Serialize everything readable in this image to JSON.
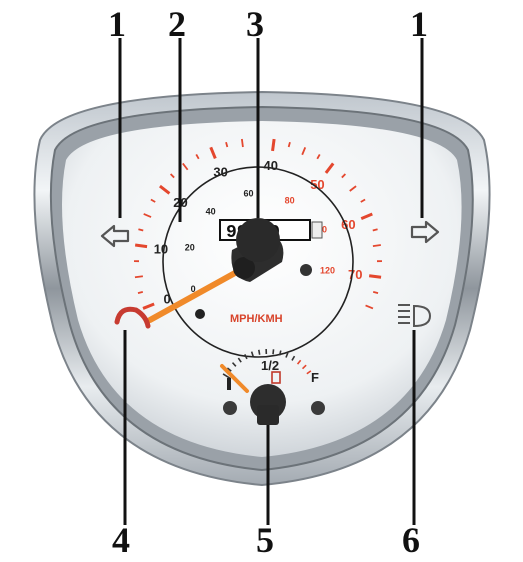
{
  "callouts": [
    {
      "id": "left-turn",
      "label": "1"
    },
    {
      "id": "speedometer",
      "label": "2"
    },
    {
      "id": "odometer",
      "label": "3"
    },
    {
      "id": "right-turn",
      "label": "1"
    },
    {
      "id": "temp-indicator",
      "label": "4"
    },
    {
      "id": "fuel-gauge",
      "label": "5"
    },
    {
      "id": "headlight-indicator",
      "label": "6"
    }
  ],
  "speedometer": {
    "mph_labels": [
      "0",
      "10",
      "20",
      "30",
      "40",
      "50",
      "60",
      "70"
    ],
    "kmh_labels": [
      "0",
      "20",
      "40",
      "60",
      "80",
      "100",
      "120"
    ],
    "unit_label": "MPH/KMH",
    "needle_value_mph": 0
  },
  "odometer": {
    "digits": "99999"
  },
  "fuel_gauge": {
    "half_label": "1/2",
    "full_label": "F",
    "empty_label": "E",
    "level": 0
  },
  "icons": [
    "left-arrow-icon",
    "right-arrow-icon",
    "temperature-icon",
    "headlight-icon",
    "fuel-pump-icon"
  ],
  "colors": {
    "mph_red": "#e4472e",
    "needle_orange": "#f08a2a",
    "face": "#f4f6f7",
    "hub": "#2d2d2d"
  }
}
